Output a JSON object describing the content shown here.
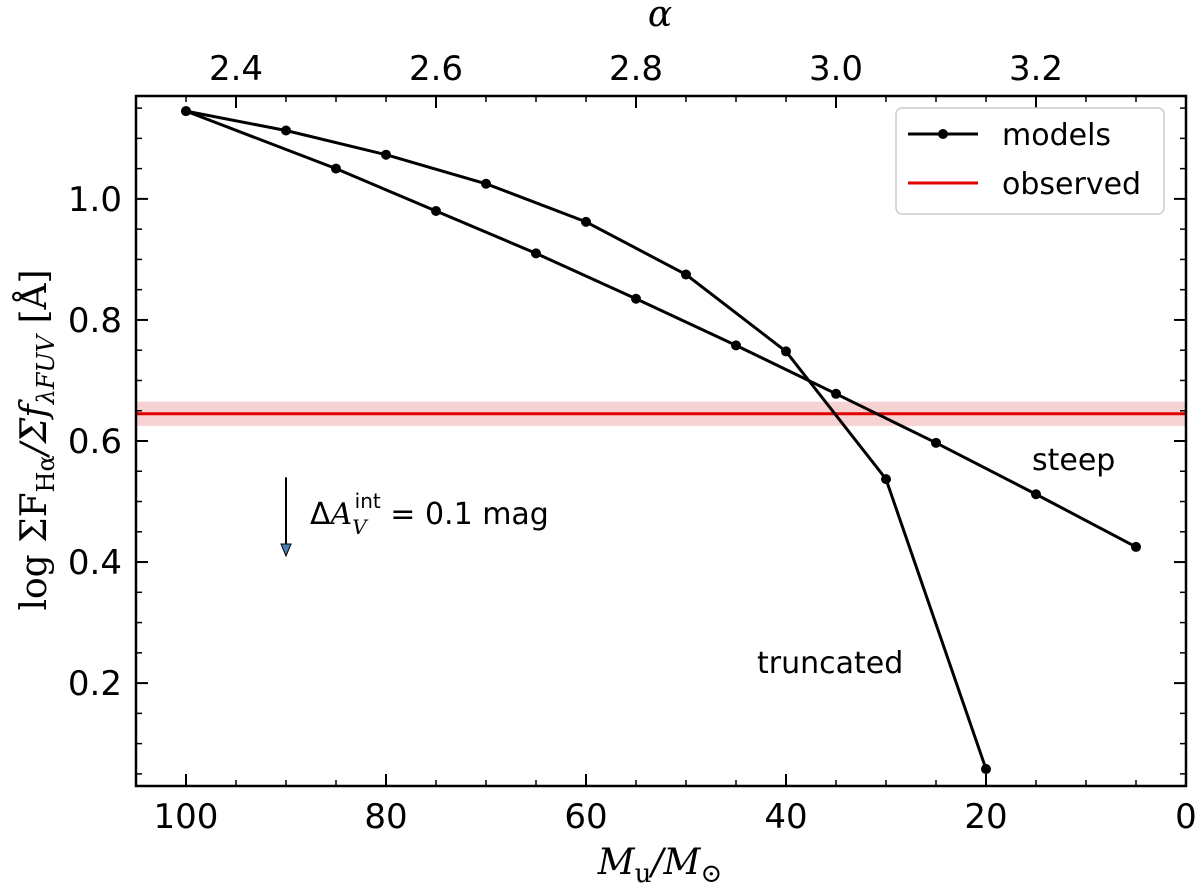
{
  "chart_data": {
    "type": "line",
    "xlabel": "M_u/M_⊙",
    "ylabel": "log ΣF_Hα/Σf_λFUV [Å]",
    "x2label": "α",
    "xlim": [
      105,
      0
    ],
    "ylim": [
      0.03,
      1.17
    ],
    "x2lim": [
      2.3,
      3.35
    ],
    "x_ticks": [
      100,
      80,
      60,
      40,
      20,
      0
    ],
    "y_ticks": [
      0.2,
      0.4,
      0.6,
      0.8,
      1.0
    ],
    "x2_ticks": [
      2.4,
      2.6,
      2.8,
      3.0,
      3.2
    ],
    "grid": false,
    "legend_position": "top-right",
    "legend": [
      {
        "label": "models",
        "color": "#000000",
        "marker": "circle"
      },
      {
        "label": "observed",
        "color": "#e00000",
        "marker": "none"
      }
    ],
    "series": [
      {
        "name": "truncated",
        "color": "#000000",
        "x": [
          100,
          90,
          80,
          70,
          60,
          50,
          40,
          30,
          20
        ],
        "y": [
          1.145,
          1.113,
          1.073,
          1.025,
          0.962,
          0.875,
          0.748,
          0.537,
          0.058
        ]
      },
      {
        "name": "steep",
        "color": "#000000",
        "x": [
          100,
          85,
          75,
          65,
          55,
          45,
          35,
          25,
          15,
          5
        ],
        "y": [
          1.145,
          1.05,
          0.98,
          0.91,
          0.835,
          0.758,
          0.678,
          0.597,
          0.512,
          0.425
        ]
      }
    ],
    "observed": {
      "label": "observed",
      "value": 0.645,
      "band": [
        0.625,
        0.665
      ],
      "color": "#e00000"
    },
    "annotations": [
      {
        "text": "steep",
        "x": 9,
        "y": 0.555
      },
      {
        "text": "truncated",
        "x": 27,
        "y": 0.16
      },
      {
        "text": "ΔA_V^int = 0.1 mag",
        "arrow_x": 90,
        "arrow_from": 0.54,
        "arrow_to": 0.41
      }
    ]
  }
}
